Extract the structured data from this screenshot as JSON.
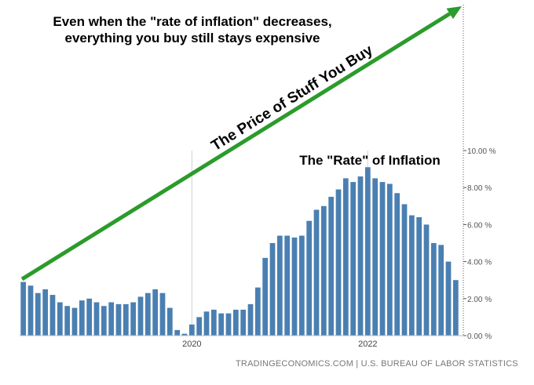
{
  "headline": {
    "line1": "Even when the \"rate of inflation\" decreases,",
    "line2": "everything you buy still stays expensive"
  },
  "arrow_label": "The Price of Stuff You Buy",
  "source_text": "TRADINGECONOMICS.COM | U.S. BUREAU OF LABOR STATISTICS",
  "colors": {
    "bar": "#4a7fb1",
    "arrow": "#2b9b2b",
    "grid": "#d0d0d0",
    "axis_text": "#555555"
  },
  "chart_data": {
    "type": "bar",
    "title": "The \"Rate\" of Inflation",
    "ylim": [
      0,
      10
    ],
    "yticks": [
      0,
      2,
      4,
      6,
      8,
      10
    ],
    "ytick_labels": [
      "0.00 %",
      "2.00 %",
      "4.00 %",
      "6.00 %",
      "8.00 %",
      "10.00 %"
    ],
    "x_ticks": [
      {
        "label": "2020",
        "index": 23
      },
      {
        "label": "2022",
        "index": 47
      }
    ],
    "grid": "vertical gridlines at year ticks",
    "values": [
      2.9,
      2.7,
      2.3,
      2.5,
      2.2,
      1.8,
      1.6,
      1.5,
      1.9,
      2.0,
      1.8,
      1.6,
      1.8,
      1.7,
      1.7,
      1.8,
      2.1,
      2.3,
      2.5,
      2.3,
      1.5,
      0.3,
      0.1,
      0.6,
      1.0,
      1.3,
      1.4,
      1.2,
      1.2,
      1.4,
      1.4,
      1.7,
      2.6,
      4.2,
      5.0,
      5.4,
      5.4,
      5.3,
      5.4,
      6.2,
      6.8,
      7.0,
      7.5,
      7.9,
      8.5,
      8.3,
      8.6,
      9.1,
      8.5,
      8.3,
      8.2,
      7.7,
      7.1,
      6.5,
      6.4,
      6.0,
      5.0,
      4.9,
      4.0,
      3.0
    ]
  }
}
